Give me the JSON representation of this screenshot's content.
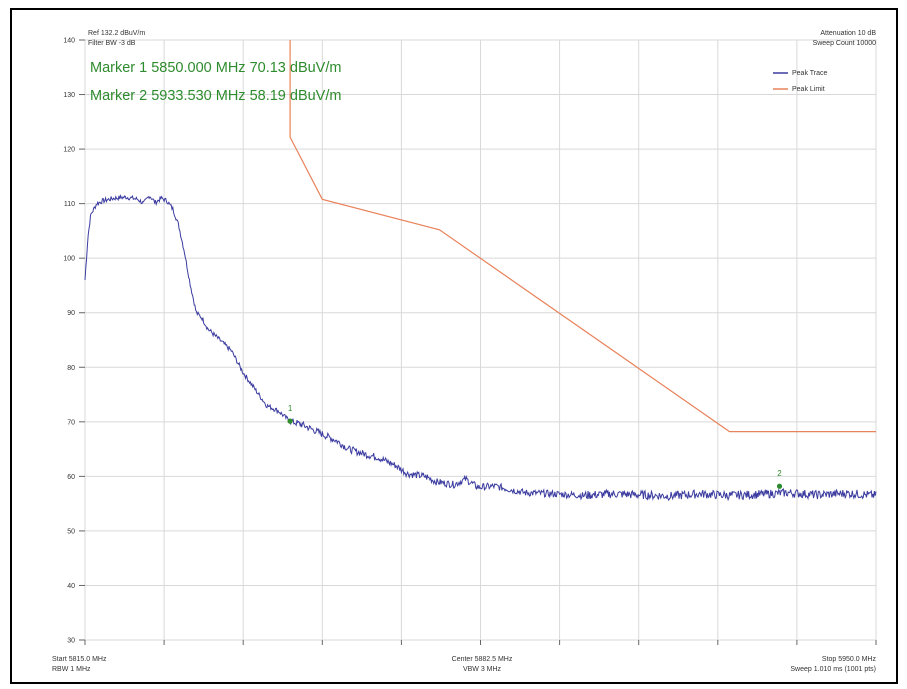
{
  "header": {
    "ref_text": "Ref 132.2 dBuV/m",
    "filter_text": "Filter BW -3 dB",
    "attenuation_text": "Attenuation 10 dB",
    "sweep_count_text": "Sweep Count 10000"
  },
  "markers": [
    {
      "label": "Marker 1 5850.000 MHz 70.13 dBuV/m",
      "id": "1",
      "x": 5850.0,
      "y": 70.13
    },
    {
      "label": "Marker 2 5933.530 MHz 58.19 dBuV/m",
      "id": "2",
      "x": 5933.53,
      "y": 58.19
    }
  ],
  "legend": [
    {
      "name": "Peak Trace",
      "color": "#3b3ba0"
    },
    {
      "name": "Peak Limit",
      "color": "#e8825a"
    }
  ],
  "footer": {
    "start": "Start 5815.0 MHz",
    "rbw": "RBW 1 MHz",
    "center": "Center 5882.5 MHz",
    "vbw": "VBW 3 MHz",
    "stop": "Stop 5950.0 MHz",
    "sweep": "Sweep 1.010 ms (1001 pts)"
  },
  "chart_data": {
    "type": "line",
    "title": "",
    "xlabel": "",
    "ylabel": "",
    "xlim": [
      5815.0,
      5950.0
    ],
    "ylim": [
      30,
      140
    ],
    "yticks": [
      30,
      40,
      50,
      60,
      70,
      80,
      90,
      100,
      110,
      120,
      130,
      140
    ],
    "grid": true,
    "legend_position": "top-right",
    "series": [
      {
        "name": "Peak Trace",
        "color": "#3b3ba0",
        "x": [
          5815.0,
          5815.5,
          5816.0,
          5817.0,
          5818.0,
          5820.0,
          5822.0,
          5824.0,
          5825.0,
          5826.0,
          5827.0,
          5828.0,
          5829.0,
          5830.0,
          5831.0,
          5832.0,
          5833.0,
          5834.0,
          5835.0,
          5836.0,
          5837.0,
          5838.0,
          5840.0,
          5842.0,
          5844.0,
          5846.0,
          5848.0,
          5849.0,
          5850.0,
          5852.0,
          5855.0,
          5858.0,
          5860.0,
          5863.0,
          5865.0,
          5868.0,
          5870.0,
          5873.0,
          5875.0,
          5878.0,
          5880.0,
          5882.0,
          5885.0,
          5888.0,
          5890.0,
          5895.0,
          5900.0,
          5905.0,
          5910.0,
          5915.0,
          5920.0,
          5925.0,
          5930.0,
          5935.0,
          5940.0,
          5945.0,
          5950.0
        ],
        "y": [
          96,
          104,
          108,
          110,
          110.5,
          111,
          111.2,
          110.8,
          110,
          111.5,
          110.2,
          111,
          110.5,
          109,
          106,
          101,
          95,
          90,
          89,
          87,
          86,
          85,
          83,
          79,
          76,
          73,
          72,
          71,
          70.13,
          69.5,
          68,
          66.5,
          65,
          64,
          63.5,
          62,
          60.5,
          60,
          59,
          58.5,
          59.5,
          58,
          58.2,
          57.5,
          57,
          56.8,
          56.5,
          56.8,
          56.6,
          56.4,
          56.8,
          56.5,
          56.7,
          57.0,
          56.6,
          56.9,
          56.5
        ]
      },
      {
        "name": "Peak Limit",
        "color": "#e8825a",
        "x": [
          5850.0,
          5850.0,
          5855.5,
          5875.5,
          5925.0,
          5950.0
        ],
        "y": [
          140,
          122.2,
          110.8,
          105.2,
          68.2,
          68.2
        ]
      }
    ],
    "markers": [
      {
        "id": "1",
        "x": 5850.0,
        "y": 70.13
      },
      {
        "id": "2",
        "x": 5933.53,
        "y": 58.19
      }
    ]
  }
}
